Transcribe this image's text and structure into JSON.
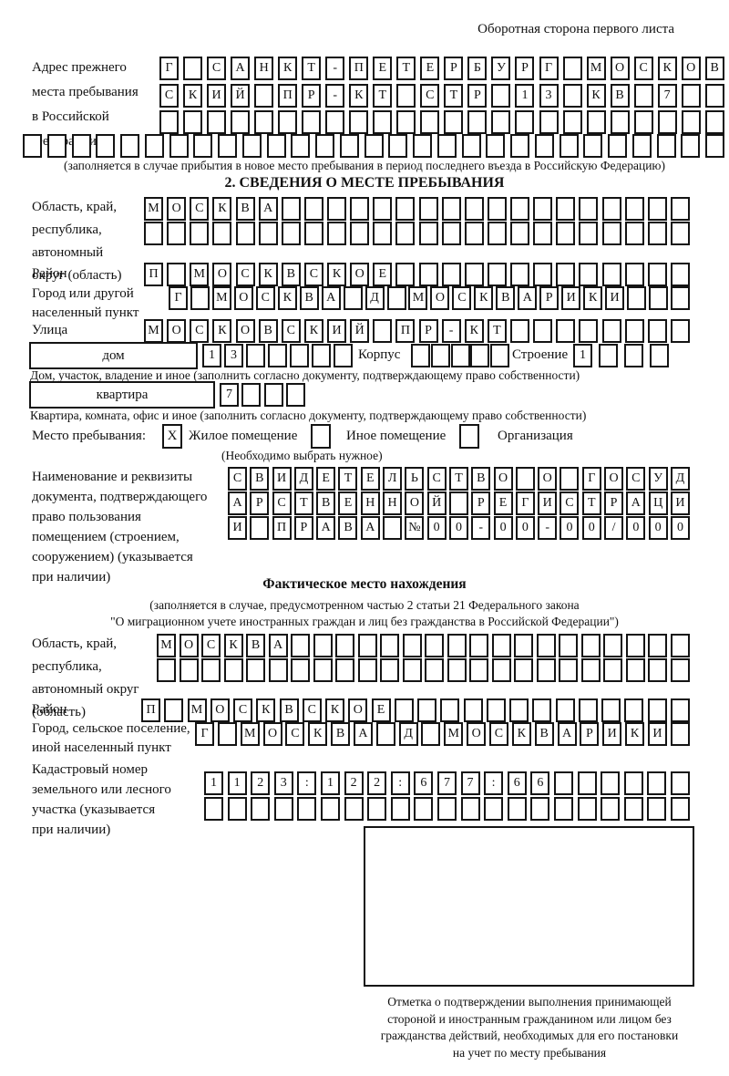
{
  "header": {
    "corner_note": "Оборотная сторона первого листа"
  },
  "prev_address": {
    "label": "Адрес прежнего\nместа пребывания\nв Российской\nФедерации",
    "row1": {
      "cells": 24,
      "value": "Г САНКТ-ПЕТЕРБУРГ МОСКОВ"
    },
    "row2": {
      "cells": 24,
      "value": "СКИЙ ПР-КТ СТР 13 КВ 7"
    },
    "row3": {
      "cells": 24,
      "value": ""
    },
    "row4": {
      "cells": 29,
      "value": ""
    },
    "note": "(заполняется в случае прибытия в новое место пребывания в период последнего въезда в Российскую Федерацию)"
  },
  "section2": {
    "title": "2. СВЕДЕНИЯ О МЕСТЕ ПРЕБЫВАНИЯ",
    "region": {
      "label": "Область, край,\nреспублика,\nавтономный\nокруг (область)",
      "row1": {
        "cells": 24,
        "value": "МОСКВА"
      },
      "row2": {
        "cells": 24,
        "value": ""
      }
    },
    "district": {
      "label": "Район",
      "row": {
        "cells": 24,
        "value": "П МОСКВСКОЕ"
      }
    },
    "city": {
      "label": "Город или другой\nнаселенный пункт",
      "row": {
        "cells": 24,
        "value": "Г МОСКВА Д МОСКВАРИКИ"
      }
    },
    "street": {
      "label": "Улица",
      "row": {
        "cells": 24,
        "value": "МОСКОВСКИЙ ПР-КТ"
      }
    },
    "house": {
      "box_label": "дом",
      "row": {
        "cells": 7,
        "value": "13"
      },
      "korpus_label": "Корпус",
      "korpus_row": {
        "cells": 5,
        "value": ""
      },
      "stroenie_label": "Строение",
      "stroenie_row": {
        "cells": 4,
        "value": "1"
      },
      "note": "Дом, участок, владение и иное (заполнить согласно документу, подтверждающему право собственности)"
    },
    "apartment": {
      "box_label": "квартира",
      "row": {
        "cells": 4,
        "value": "7"
      },
      "note": "Квартира, комната, офис и иное (заполнить согласно документу, подтверждающему право собственности)"
    },
    "stay_type": {
      "label": "Место пребывания:",
      "options": [
        {
          "mark": "X",
          "label": "Жилое помещение"
        },
        {
          "mark": "",
          "label": "Иное помещение"
        },
        {
          "mark": "",
          "label": "Организация"
        }
      ],
      "note": "(Необходимо выбрать нужное)"
    },
    "doc": {
      "label": "Наименование и реквизиты\nдокумента, подтверждающего\nправо пользования\nпомещением (строением,\nсооружением) (указывается\nпри наличии)",
      "row1": {
        "cells": 21,
        "value": "СВИДЕТЕЛЬСТВО О ГОСУД"
      },
      "row2": {
        "cells": 21,
        "value": "АРСТВЕННОЙ РЕГИСТРАЦИ"
      },
      "row3": {
        "cells": 21,
        "value": "И ПРАВА №00-00-00/000"
      }
    }
  },
  "actual_location": {
    "title": "Фактическое место нахождения",
    "law_note": "(заполняется в случае, предусмотренном частью 2 статьи 21 Федерального закона\n\"О миграционном учете иностранных граждан и лиц без гражданства в Российской Федерации\")",
    "region": {
      "label": "Область, край,\nреспублика,\nавтономный округ\n(область)",
      "row1": {
        "cells": 24,
        "value": "МОСКВА"
      },
      "row2": {
        "cells": 24,
        "value": ""
      }
    },
    "district": {
      "label": "Район",
      "row": {
        "cells": 24,
        "value": "П МОСКВСКОЕ"
      }
    },
    "city": {
      "label": "Город, сельское поселение,\nиной населенный пункт",
      "row": {
        "cells": 22,
        "value": "Г МОСКВА Д МОСКВАРИКИ"
      }
    },
    "cadastral": {
      "label": "Кадастровый номер\nземельного или лесного\nучастка (указывается\nпри наличии)",
      "row1": {
        "cells": 21,
        "value": "1123:122:677:66"
      },
      "row2": {
        "cells": 21,
        "value": ""
      }
    },
    "stamp": {
      "caption": "Отметка о подтверждении выполнения принимающей\nстороной и иностранным гражданином или лицом без\nгражданства действий, необходимых для его постановки\nна учет по месту пребывания"
    }
  }
}
